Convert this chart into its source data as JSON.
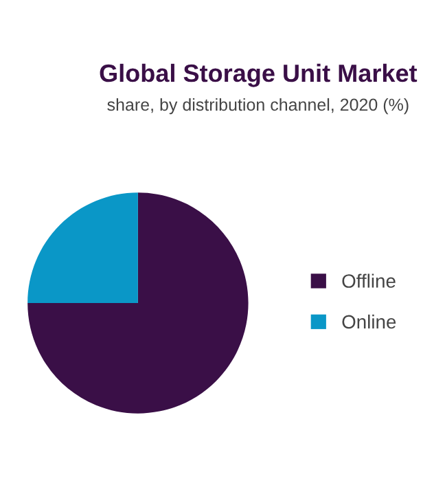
{
  "chart_data": {
    "type": "pie",
    "title": "Global Storage Unit Market",
    "subtitle": "share, by distribution channel, 2020 (%)",
    "categories": [
      "Offline",
      "Online"
    ],
    "values": [
      75,
      25
    ],
    "colors": [
      "#3a0f47",
      "#0a97c7"
    ],
    "legend": "right"
  }
}
